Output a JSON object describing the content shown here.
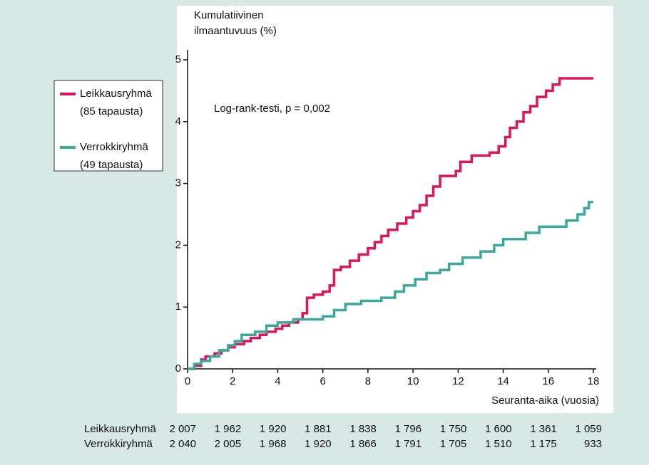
{
  "chart_data": {
    "type": "step",
    "ylabel": [
      "Kumulatiivinen",
      "ilmaantuvuus (%)"
    ],
    "xlabel": "Seuranta-aika (vuosia)",
    "annotation": "Log-rank-testi, p = 0,002",
    "xlim": [
      0,
      18
    ],
    "xticks": [
      0,
      2,
      4,
      6,
      8,
      10,
      12,
      14,
      16,
      18
    ],
    "ylim": [
      0,
      5
    ],
    "yticks": [
      0,
      1,
      2,
      3,
      4,
      5
    ],
    "series": [
      {
        "name": "Leikkausryhmä",
        "cases_label": "(85 tapausta)",
        "color": "#e0145e",
        "x": [
          0,
          0.3,
          0.6,
          0.8,
          1.2,
          1.5,
          1.8,
          2.1,
          2.5,
          2.8,
          3.2,
          3.5,
          3.9,
          4.2,
          4.5,
          4.9,
          5.1,
          5.3,
          5.6,
          6.0,
          6.3,
          6.5,
          6.8,
          7.2,
          7.6,
          8.0,
          8.3,
          8.6,
          8.9,
          9.3,
          9.7,
          10.0,
          10.3,
          10.6,
          10.9,
          11.2,
          11.9,
          12.1,
          12.6,
          13.4,
          13.8,
          14.1,
          14.3,
          14.6,
          14.9,
          15.2,
          15.5,
          15.9,
          16.2,
          16.5,
          18.0
        ],
        "values": [
          0,
          0.05,
          0.15,
          0.2,
          0.25,
          0.3,
          0.35,
          0.4,
          0.45,
          0.5,
          0.55,
          0.6,
          0.65,
          0.7,
          0.75,
          0.8,
          0.9,
          1.15,
          1.2,
          1.25,
          1.35,
          1.6,
          1.65,
          1.75,
          1.85,
          1.95,
          2.05,
          2.15,
          2.25,
          2.35,
          2.45,
          2.55,
          2.65,
          2.8,
          2.95,
          3.12,
          3.2,
          3.35,
          3.45,
          3.5,
          3.6,
          3.75,
          3.9,
          4.0,
          4.15,
          4.25,
          4.4,
          4.5,
          4.6,
          4.7,
          4.7
        ]
      },
      {
        "name": "Verrokkiryhmä",
        "cases_label": "(49 tapausta)",
        "color": "#3aa89a",
        "x": [
          0,
          0.3,
          0.6,
          1.0,
          1.4,
          1.8,
          2.1,
          2.4,
          3.0,
          3.5,
          4.0,
          4.7,
          6.0,
          6.5,
          7.0,
          7.7,
          8.6,
          9.2,
          9.6,
          10.1,
          10.6,
          11.2,
          11.6,
          12.2,
          13.0,
          13.6,
          14.0,
          15.0,
          15.6,
          16.8,
          17.3,
          17.6,
          17.8,
          18.0
        ],
        "values": [
          0,
          0.08,
          0.13,
          0.2,
          0.3,
          0.38,
          0.45,
          0.55,
          0.6,
          0.7,
          0.75,
          0.8,
          0.85,
          0.95,
          1.05,
          1.1,
          1.15,
          1.25,
          1.35,
          1.45,
          1.55,
          1.6,
          1.7,
          1.8,
          1.9,
          2.0,
          2.1,
          2.2,
          2.3,
          2.4,
          2.5,
          2.6,
          2.7,
          2.7
        ]
      }
    ],
    "risk_table": {
      "rows": [
        {
          "label": "Leikkausryhmä",
          "values": [
            2007,
            1962,
            1920,
            1881,
            1838,
            1796,
            1750,
            1600,
            1361,
            1059
          ],
          "value_labels": [
            "2 007",
            "1 962",
            "1 920",
            "1 881",
            "1 838",
            "1 796",
            "1 750",
            "1 600",
            "1 361",
            "1 059"
          ]
        },
        {
          "label": "Verrokkiryhmä",
          "values": [
            2040,
            2005,
            1968,
            1920,
            1866,
            1791,
            1705,
            1510,
            1175,
            933
          ],
          "value_labels": [
            "2 040",
            "2 005",
            "1 968",
            "1 920",
            "1 866",
            "1 791",
            "1 705",
            "1 510",
            "1 175",
            "933"
          ]
        }
      ]
    }
  }
}
